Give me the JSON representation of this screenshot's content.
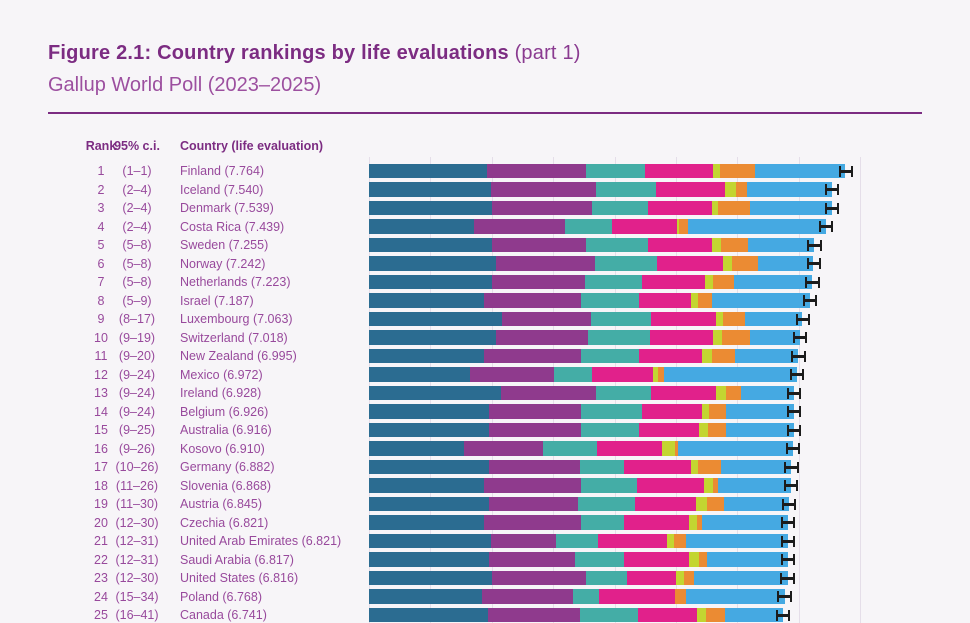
{
  "header": {
    "title_bold": "Figure 2.1: Country rankings by life evaluations",
    "title_light": " (part 1)",
    "subtitle": "Gallup World Poll (2023–2025)"
  },
  "table": {
    "columns": {
      "rank": "Rank",
      "ci": "95% c.i.",
      "country": "Country (life evaluation)"
    }
  },
  "colors": {
    "title": "#7c2c82",
    "subtitle": "#9c4f9f",
    "row_text": "#98499c",
    "background": "#f7f5f8",
    "gridline": "#e5dee9",
    "error_bar": "#1c1c1c",
    "segment_colors": [
      "#2b6c91",
      "#8f3a8d",
      "#44ada6",
      "#e1218b",
      "#c3d531",
      "#eb8b33",
      "#45a9e2"
    ]
  },
  "chart_data": {
    "type": "bar",
    "orientation": "horizontal",
    "stacked": true,
    "x_range": [
      0,
      8
    ],
    "gridlines_every": 1,
    "grid": true,
    "legend_position": "none",
    "error_bars": true,
    "ci_halfwidth": 0.115,
    "series_names": [
      "dark_blue",
      "purple",
      "teal",
      "magenta",
      "yellow_green",
      "orange",
      "light_blue"
    ],
    "rows": [
      {
        "rank": "1",
        "ci": "(1–1)",
        "country": "Finland",
        "score": 7.764,
        "label": "Finland (7.764)",
        "components": [
          1.92,
          1.61,
          0.96,
          1.12,
          0.1,
          0.57,
          1.48
        ]
      },
      {
        "rank": "2",
        "ci": "(2–4)",
        "country": "Iceland",
        "score": 7.54,
        "label": "Iceland (7.540)",
        "components": [
          1.98,
          1.71,
          0.99,
          1.12,
          0.18,
          0.18,
          1.38
        ]
      },
      {
        "rank": "3",
        "ci": "(2–4)",
        "country": "Denmark",
        "score": 7.539,
        "label": "Denmark (7.539)",
        "components": [
          2.0,
          1.63,
          0.92,
          1.04,
          0.1,
          0.52,
          1.33
        ]
      },
      {
        "rank": "4",
        "ci": "(2–4)",
        "country": "Costa Rica",
        "score": 7.439,
        "label": "Costa Rica (7.439)",
        "components": [
          1.71,
          1.48,
          0.76,
          1.07,
          0.03,
          0.15,
          2.24
        ]
      },
      {
        "rank": "5",
        "ci": "(5–8)",
        "country": "Sweden",
        "score": 7.255,
        "label": "Sweden (7.255)",
        "components": [
          2.0,
          1.53,
          1.01,
          1.05,
          0.15,
          0.44,
          1.08
        ]
      },
      {
        "rank": "6",
        "ci": "(5–8)",
        "country": "Norway",
        "score": 7.242,
        "label": "Norway (7.242)",
        "components": [
          2.07,
          1.61,
          1.01,
          1.08,
          0.15,
          0.42,
          0.9
        ]
      },
      {
        "rank": "7",
        "ci": "(5–8)",
        "country": "Netherlands",
        "score": 7.223,
        "label": "Netherlands (7.223)",
        "components": [
          2.0,
          1.51,
          0.94,
          1.02,
          0.13,
          0.34,
          1.28
        ]
      },
      {
        "rank": "8",
        "ci": "(5–9)",
        "country": "Israel",
        "score": 7.187,
        "label": "Israel (7.187)",
        "components": [
          1.87,
          1.59,
          0.93,
          0.86,
          0.11,
          0.23,
          1.6
        ]
      },
      {
        "rank": "9",
        "ci": "(8–17)",
        "country": "Luxembourg",
        "score": 7.063,
        "label": "Luxembourg (7.063)",
        "components": [
          2.16,
          1.45,
          0.98,
          1.06,
          0.11,
          0.37,
          0.93
        ]
      },
      {
        "rank": "10",
        "ci": "(9–19)",
        "country": "Switzerland",
        "score": 7.018,
        "label": "Switzerland (7.018)",
        "components": [
          2.07,
          1.5,
          1.01,
          1.02,
          0.15,
          0.45,
          0.82
        ]
      },
      {
        "rank": "11",
        "ci": "(9–20)",
        "country": "New Zealand",
        "score": 6.995,
        "label": "New Zealand (6.995)",
        "components": [
          1.87,
          1.59,
          0.93,
          1.04,
          0.16,
          0.37,
          1.04
        ]
      },
      {
        "rank": "12",
        "ci": "(9–24)",
        "country": "Mexico",
        "score": 6.972,
        "label": "Mexico (6.972)",
        "components": [
          1.64,
          1.37,
          0.63,
          0.99,
          0.08,
          0.1,
          2.16
        ]
      },
      {
        "rank": "13",
        "ci": "(9–24)",
        "country": "Ireland",
        "score": 6.928,
        "label": "Ireland (6.928)",
        "components": [
          2.15,
          1.54,
          0.91,
          1.06,
          0.16,
          0.24,
          0.87
        ]
      },
      {
        "rank": "14",
        "ci": "(9–24)",
        "country": "Belgium",
        "score": 6.926,
        "label": "Belgium (6.926)",
        "components": [
          1.95,
          1.51,
          0.99,
          0.98,
          0.11,
          0.28,
          1.11
        ]
      },
      {
        "rank": "15",
        "ci": "(9–25)",
        "country": "Australia",
        "score": 6.916,
        "label": "Australia (6.916)",
        "components": [
          1.95,
          1.5,
          0.94,
          0.98,
          0.15,
          0.29,
          1.11
        ]
      },
      {
        "rank": "16",
        "ci": "(9–26)",
        "country": "Kosovo",
        "score": 6.91,
        "label": "Kosovo (6.910)",
        "components": [
          1.54,
          1.3,
          0.88,
          1.06,
          0.2,
          0.06,
          1.87
        ]
      },
      {
        "rank": "17",
        "ci": "(10–26)",
        "country": "Germany",
        "score": 6.882,
        "label": "Germany (6.882)",
        "components": [
          1.95,
          1.49,
          0.72,
          1.09,
          0.11,
          0.37,
          1.15
        ]
      },
      {
        "rank": "18",
        "ci": "(11–26)",
        "country": "Slovenia",
        "score": 6.868,
        "label": "Slovenia (6.868)",
        "components": [
          1.87,
          1.59,
          0.91,
          1.09,
          0.15,
          0.07,
          1.19
        ]
      },
      {
        "rank": "19",
        "ci": "(11–30)",
        "country": "Austria",
        "score": 6.845,
        "label": "Austria (6.845)",
        "components": [
          1.95,
          1.46,
          0.93,
          0.98,
          0.18,
          0.28,
          1.07
        ]
      },
      {
        "rank": "20",
        "ci": "(12–30)",
        "country": "Czechia",
        "score": 6.821,
        "label": "Czechia (6.821)",
        "components": [
          1.87,
          1.58,
          0.7,
          1.07,
          0.13,
          0.08,
          1.39
        ]
      },
      {
        "rank": "21",
        "ci": "(12–31)",
        "country": "United Arab Emirates",
        "score": 6.821,
        "label": "United Arab Emirates (6.821)",
        "components": [
          1.98,
          1.07,
          0.68,
          1.12,
          0.11,
          0.2,
          1.66
        ]
      },
      {
        "rank": "22",
        "ci": "(12–31)",
        "country": "Saudi Arabia",
        "score": 6.817,
        "label": "Saudi Arabia (6.817)",
        "components": [
          1.95,
          1.41,
          0.8,
          1.06,
          0.15,
          0.14,
          1.31
        ]
      },
      {
        "rank": "23",
        "ci": "(12–30)",
        "country": "United States",
        "score": 6.816,
        "label": "United States (6.816)",
        "components": [
          2.0,
          1.53,
          0.67,
          0.8,
          0.13,
          0.17,
          1.52
        ]
      },
      {
        "rank": "24",
        "ci": "(15–34)",
        "country": "Poland",
        "score": 6.768,
        "label": "Poland (6.768)",
        "components": [
          1.84,
          1.48,
          0.42,
          1.24,
          0.0,
          0.18,
          1.61
        ]
      },
      {
        "rank": "25",
        "ci": "(16–41)",
        "country": "Canada",
        "score": 6.741,
        "label": "Canada (6.741)",
        "components": [
          1.93,
          1.51,
          0.94,
          0.96,
          0.15,
          0.31,
          0.94
        ]
      }
    ]
  }
}
